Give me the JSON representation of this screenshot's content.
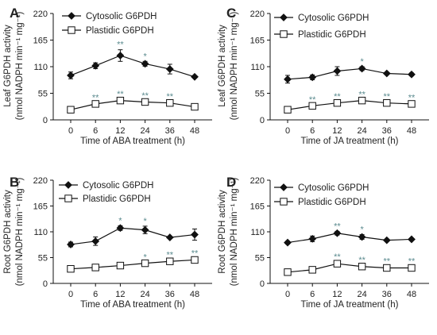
{
  "chart_data": [
    {
      "type": "line",
      "panel": "A",
      "x": [
        0,
        6,
        12,
        24,
        36,
        48
      ],
      "xticklabels": [
        "0",
        "6",
        "12",
        "24",
        "36",
        "48"
      ],
      "xlabel": "Time of  ABA treatment (h)",
      "ylabel": [
        "Leaf G6PDH activity",
        "(nmol NADPH min⁻¹ mg⁻¹)"
      ],
      "ylim": [
        0,
        220
      ],
      "yticks": [
        0,
        55,
        110,
        165,
        220
      ],
      "legend_position": "top-left",
      "series": [
        {
          "name": "Cytosolic G6PDH",
          "marker": "diamond-filled",
          "values": [
            92,
            112,
            133,
            116,
            105,
            89
          ],
          "errors": [
            7,
            6,
            12,
            5,
            10,
            2
          ],
          "sig": [
            "",
            "",
            "**",
            "*",
            "",
            ""
          ]
        },
        {
          "name": "Plastidic G6PDH",
          "marker": "square-open",
          "values": [
            21,
            33,
            40,
            37,
            35,
            27
          ],
          "errors": [
            2,
            2,
            3,
            2,
            3,
            3
          ],
          "sig": [
            "",
            "**",
            "**",
            "**",
            "**",
            ""
          ]
        }
      ]
    },
    {
      "type": "line",
      "panel": "C",
      "x": [
        0,
        6,
        12,
        24,
        36,
        48
      ],
      "xticklabels": [
        "0",
        "6",
        "12",
        "24",
        "36",
        "48"
      ],
      "xlabel": "Time of JA treatment (h)",
      "ylabel": [
        "Leaf G6PDH activity",
        "(nmol NADPH min⁻¹ mg⁻¹)"
      ],
      "ylim": [
        0,
        220
      ],
      "yticks": [
        0,
        55,
        110,
        165,
        220
      ],
      "legend_position": "top-left",
      "series": [
        {
          "name": "Cytosolic G6PDH",
          "marker": "diamond-filled",
          "values": [
            84,
            88,
            101,
            106,
            96,
            94
          ],
          "errors": [
            8,
            5,
            9,
            4,
            2,
            3
          ],
          "sig": [
            "",
            "",
            "",
            "*",
            "",
            ""
          ]
        },
        {
          "name": "Plastidic G6PDH",
          "marker": "square-open",
          "values": [
            21,
            29,
            35,
            40,
            35,
            33
          ],
          "errors": [
            2,
            2,
            3,
            2,
            3,
            2
          ],
          "sig": [
            "",
            "**",
            "**",
            "**",
            "**",
            "**"
          ]
        }
      ]
    },
    {
      "type": "line",
      "panel": "B",
      "x": [
        0,
        6,
        12,
        24,
        36,
        48
      ],
      "xticklabels": [
        "0",
        "6",
        "12",
        "24",
        "36",
        "48"
      ],
      "xlabel": "Time of ABA treatment (h)",
      "ylabel": [
        "Root G6PDH activity",
        "(nmol NADPH min⁻¹ mg⁻¹)"
      ],
      "ylim": [
        0,
        220
      ],
      "yticks": [
        0,
        55,
        110,
        165,
        220
      ],
      "legend_position": "top-left",
      "series": [
        {
          "name": "Cytosolic G6PDH",
          "marker": "diamond-filled",
          "values": [
            83,
            90,
            118,
            114,
            98,
            104
          ],
          "errors": [
            5,
            9,
            5,
            8,
            2,
            12
          ],
          "sig": [
            "",
            "",
            "*",
            "*",
            "",
            ""
          ]
        },
        {
          "name": "Plastidic G6PDH",
          "marker": "square-open",
          "values": [
            31,
            34,
            38,
            43,
            47,
            50
          ],
          "errors": [
            2,
            2,
            2,
            2,
            3,
            3
          ],
          "sig": [
            "",
            "",
            "",
            "*",
            "**",
            "**"
          ]
        }
      ]
    },
    {
      "type": "line",
      "panel": "D",
      "x": [
        0,
        6,
        12,
        24,
        36,
        48
      ],
      "xticklabels": [
        "0",
        "6",
        "12",
        "24",
        "36",
        "48"
      ],
      "xlabel": "Time of JA treatment (h)",
      "ylabel": [
        "Root G6PDH activity",
        "(nmol NADPH min⁻¹ mg⁻¹)"
      ],
      "ylim": [
        0,
        220
      ],
      "yticks": [
        0,
        55,
        110,
        165,
        220
      ],
      "legend_position": "top-left",
      "series": [
        {
          "name": "Cytosolic G6PDH",
          "marker": "diamond-filled",
          "values": [
            87,
            95,
            107,
            99,
            92,
            94
          ],
          "errors": [
            3,
            6,
            4,
            5,
            2,
            2
          ],
          "sig": [
            "",
            "",
            "**",
            "*",
            "",
            ""
          ]
        },
        {
          "name": "Plastidic G6PDH",
          "marker": "square-open",
          "values": [
            24,
            29,
            42,
            36,
            33,
            33
          ],
          "errors": [
            2,
            2,
            4,
            3,
            3,
            3
          ],
          "sig": [
            "",
            "",
            "**",
            "**",
            "**",
            "**"
          ]
        }
      ]
    }
  ]
}
